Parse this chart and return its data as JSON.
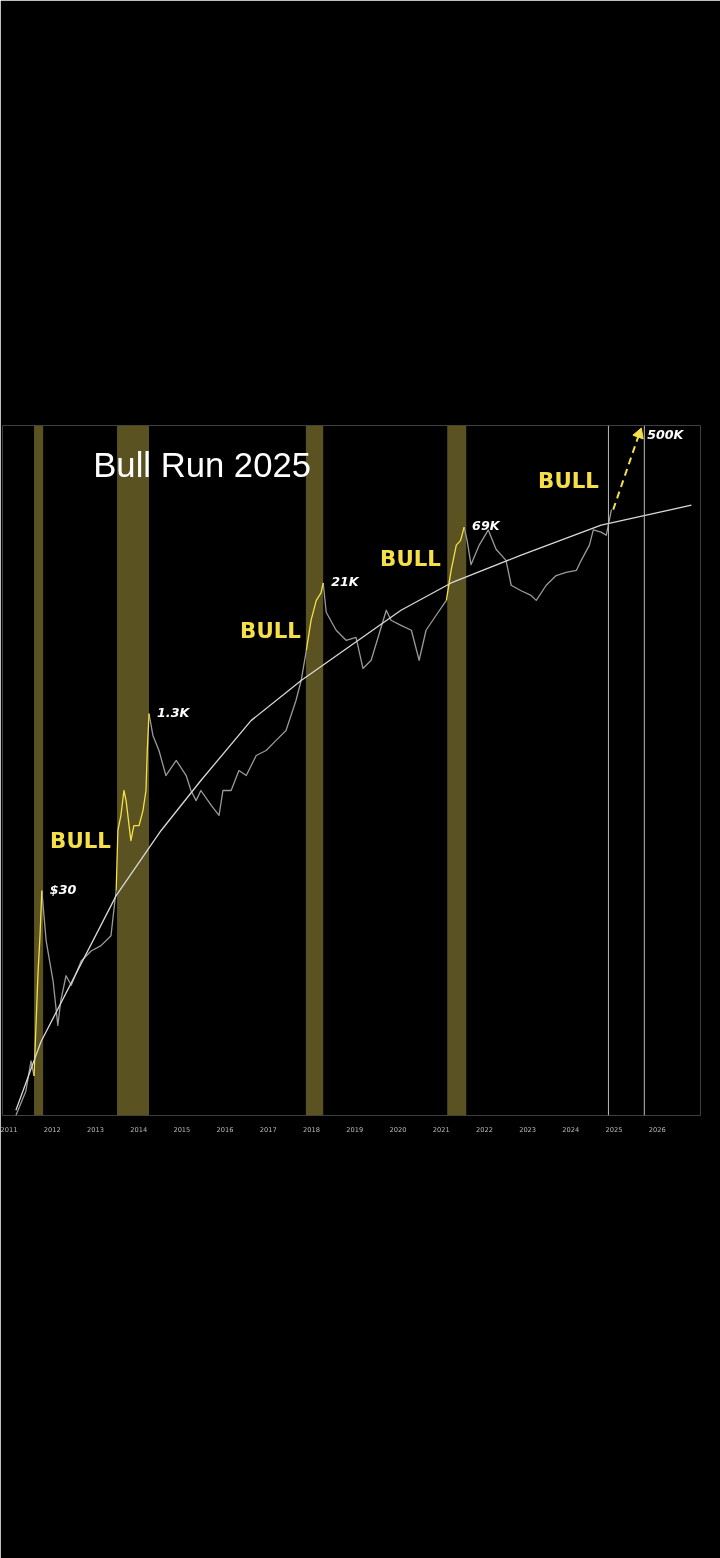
{
  "chart_data": {
    "type": "line",
    "title": "Bull Run 2025",
    "xlim": [
      2010.85,
      2027.0
    ],
    "xticks": [
      2011,
      2012,
      2013,
      2014,
      2015,
      2016,
      2017,
      2018,
      2019,
      2020,
      2021,
      2022,
      2023,
      2024,
      2025,
      2026
    ],
    "ylim": [
      0.25,
      600000
    ],
    "log": "y",
    "tick_labels": "x",
    "grid": false,
    "series": [
      {
        "color": "#9a9a9a",
        "x": [
          2011.16,
          2011.39,
          2011.51,
          2011.58,
          2011.67,
          2011.76,
          2011.86,
          2012.02,
          2012.13,
          2012.2,
          2012.32,
          2012.44,
          2012.67,
          2012.9,
          2013.13,
          2013.36,
          2013.45,
          2013.48,
          2013.8,
          2014.24,
          2014.33,
          2014.47,
          2014.63,
          2014.87,
          2015.1,
          2015.21,
          2015.33,
          2015.44,
          2015.68,
          2015.86,
          2015.95,
          2016.14,
          2016.32,
          2016.49,
          2016.72,
          2016.95,
          2017.18,
          2017.41,
          2017.64,
          2017.76,
          2017.88,
          2018.1,
          2018.27,
          2018.34,
          2018.57,
          2018.8,
          2019.03,
          2019.19,
          2019.38,
          2019.73,
          2019.84,
          2020.07,
          2020.31,
          2020.49,
          2020.65,
          2020.88,
          2021.12,
          2021.3,
          2021.53,
          2021.6,
          2021.69,
          2021.88,
          2022.09,
          2022.27,
          2022.5,
          2022.62,
          2022.85,
          2023.08,
          2023.2,
          2023.43,
          2023.66,
          2023.89,
          2024.13,
          2024.24,
          2024.43,
          2024.52,
          2024.7,
          2024.82,
          2024.94
        ],
        "values": [
          0.25,
          0.42,
          0.8,
          0.58,
          null,
          30,
          10.3,
          4.4,
          1.7,
          2.9,
          4.9,
          4.0,
          6.7,
          8.3,
          9.3,
          11.5,
          24,
          30,
          null,
          1300,
          817,
          593,
          348,
          480,
          348,
          253,
          204,
          253,
          184,
          149,
          253,
          253,
          387,
          348,
          533,
          593,
          735,
          908,
          1720,
          2630,
          5000,
          null,
          21000,
          11250,
          7670,
          6200,
          6600,
          3400,
          4050,
          11750,
          9500,
          8500,
          7670,
          4050,
          7670,
          10500,
          14500,
          null,
          69000,
          52000,
          31000,
          47000,
          65000,
          43000,
          34000,
          20000,
          17800,
          16100,
          14500,
          20000,
          24600,
          26300,
          27500,
          34000,
          47000,
          65000,
          62000,
          58000,
          100000
        ],
        "value_labels": [
          null,
          null,
          null,
          null,
          null,
          "$30",
          null,
          null,
          null,
          null,
          null,
          null,
          null,
          null,
          null,
          null,
          null,
          null,
          null,
          "1.3K",
          null,
          null,
          null,
          null,
          null,
          null,
          null,
          null,
          null,
          null,
          null,
          null,
          null,
          null,
          null,
          null,
          null,
          null,
          null,
          null,
          null,
          null,
          "21K",
          null,
          null,
          null,
          null,
          null,
          null,
          null,
          null,
          null,
          null,
          null,
          null,
          null,
          null,
          null,
          "69K",
          null,
          null,
          null,
          null,
          null,
          null,
          null,
          null,
          null,
          null,
          null,
          null,
          null,
          null,
          null,
          null,
          null,
          null,
          null,
          null
        ]
      },
      {
        "color": "#f5e04a",
        "x": [
          2011.58,
          2011.67,
          2011.72,
          2011.76,
          2012.5,
          2013.48,
          2013.52,
          2013.59,
          2013.66,
          2013.71,
          2013.82,
          2013.89,
          2014.01,
          2014.1,
          2014.17,
          2014.2,
          2014.24,
          2016.0,
          2017.88,
          2017.99,
          2018.11,
          2018.22,
          2018.27,
          2019.5,
          2021.12,
          2021.23,
          2021.35,
          2021.45,
          2021.53
        ],
        "values": [
          0.58,
          5,
          12,
          30,
          null,
          30,
          108,
          149,
          253,
          204,
          87,
          120,
          120,
          165,
          253,
          600,
          1300,
          null,
          5000,
          9500,
          14500,
          17000,
          21000,
          null,
          14500,
          27500,
          47000,
          52000,
          69000
        ]
      },
      {
        "color": "#d8d8d8",
        "x": [
          2011.16,
          2011.74,
          2013.48,
          2014.52,
          2015.44,
          2016.6,
          2017.76,
          2020.07,
          2021.23,
          2022.85,
          2024.7,
          2026.79
        ],
        "values": [
          0.28,
          1.2,
          27,
          108,
          313,
          1120,
          2630,
          11750,
          21000,
          38000,
          72000,
          110000
        ]
      },
      {
        "color": "#f5e04a",
        "line_style": "dashed",
        "marker": "triangle",
        "x": [
          2024.98,
          2025.58
        ],
        "values": [
          100000,
          500000
        ],
        "value_labels": [
          null,
          "500K"
        ]
      }
    ],
    "bands": [
      {
        "axis": "x",
        "from": 2011.58,
        "to": 2011.79,
        "color": "#5a5220"
      },
      {
        "axis": "x",
        "from": 2013.5,
        "to": 2014.24,
        "color": "#5a5220"
      },
      {
        "axis": "x",
        "from": 2017.87,
        "to": 2018.27,
        "color": "#5a5220"
      },
      {
        "axis": "x",
        "from": 2021.14,
        "to": 2021.58,
        "color": "#5a5220"
      }
    ],
    "ref_lines": [
      {
        "axis": "x",
        "value": 2024.87,
        "color": "#bbbbbb"
      },
      {
        "axis": "x",
        "value": 2025.7,
        "color": "#bbbbbb"
      }
    ],
    "annotations": [
      "BULL",
      "BULL",
      "BULL",
      "BULL"
    ]
  }
}
